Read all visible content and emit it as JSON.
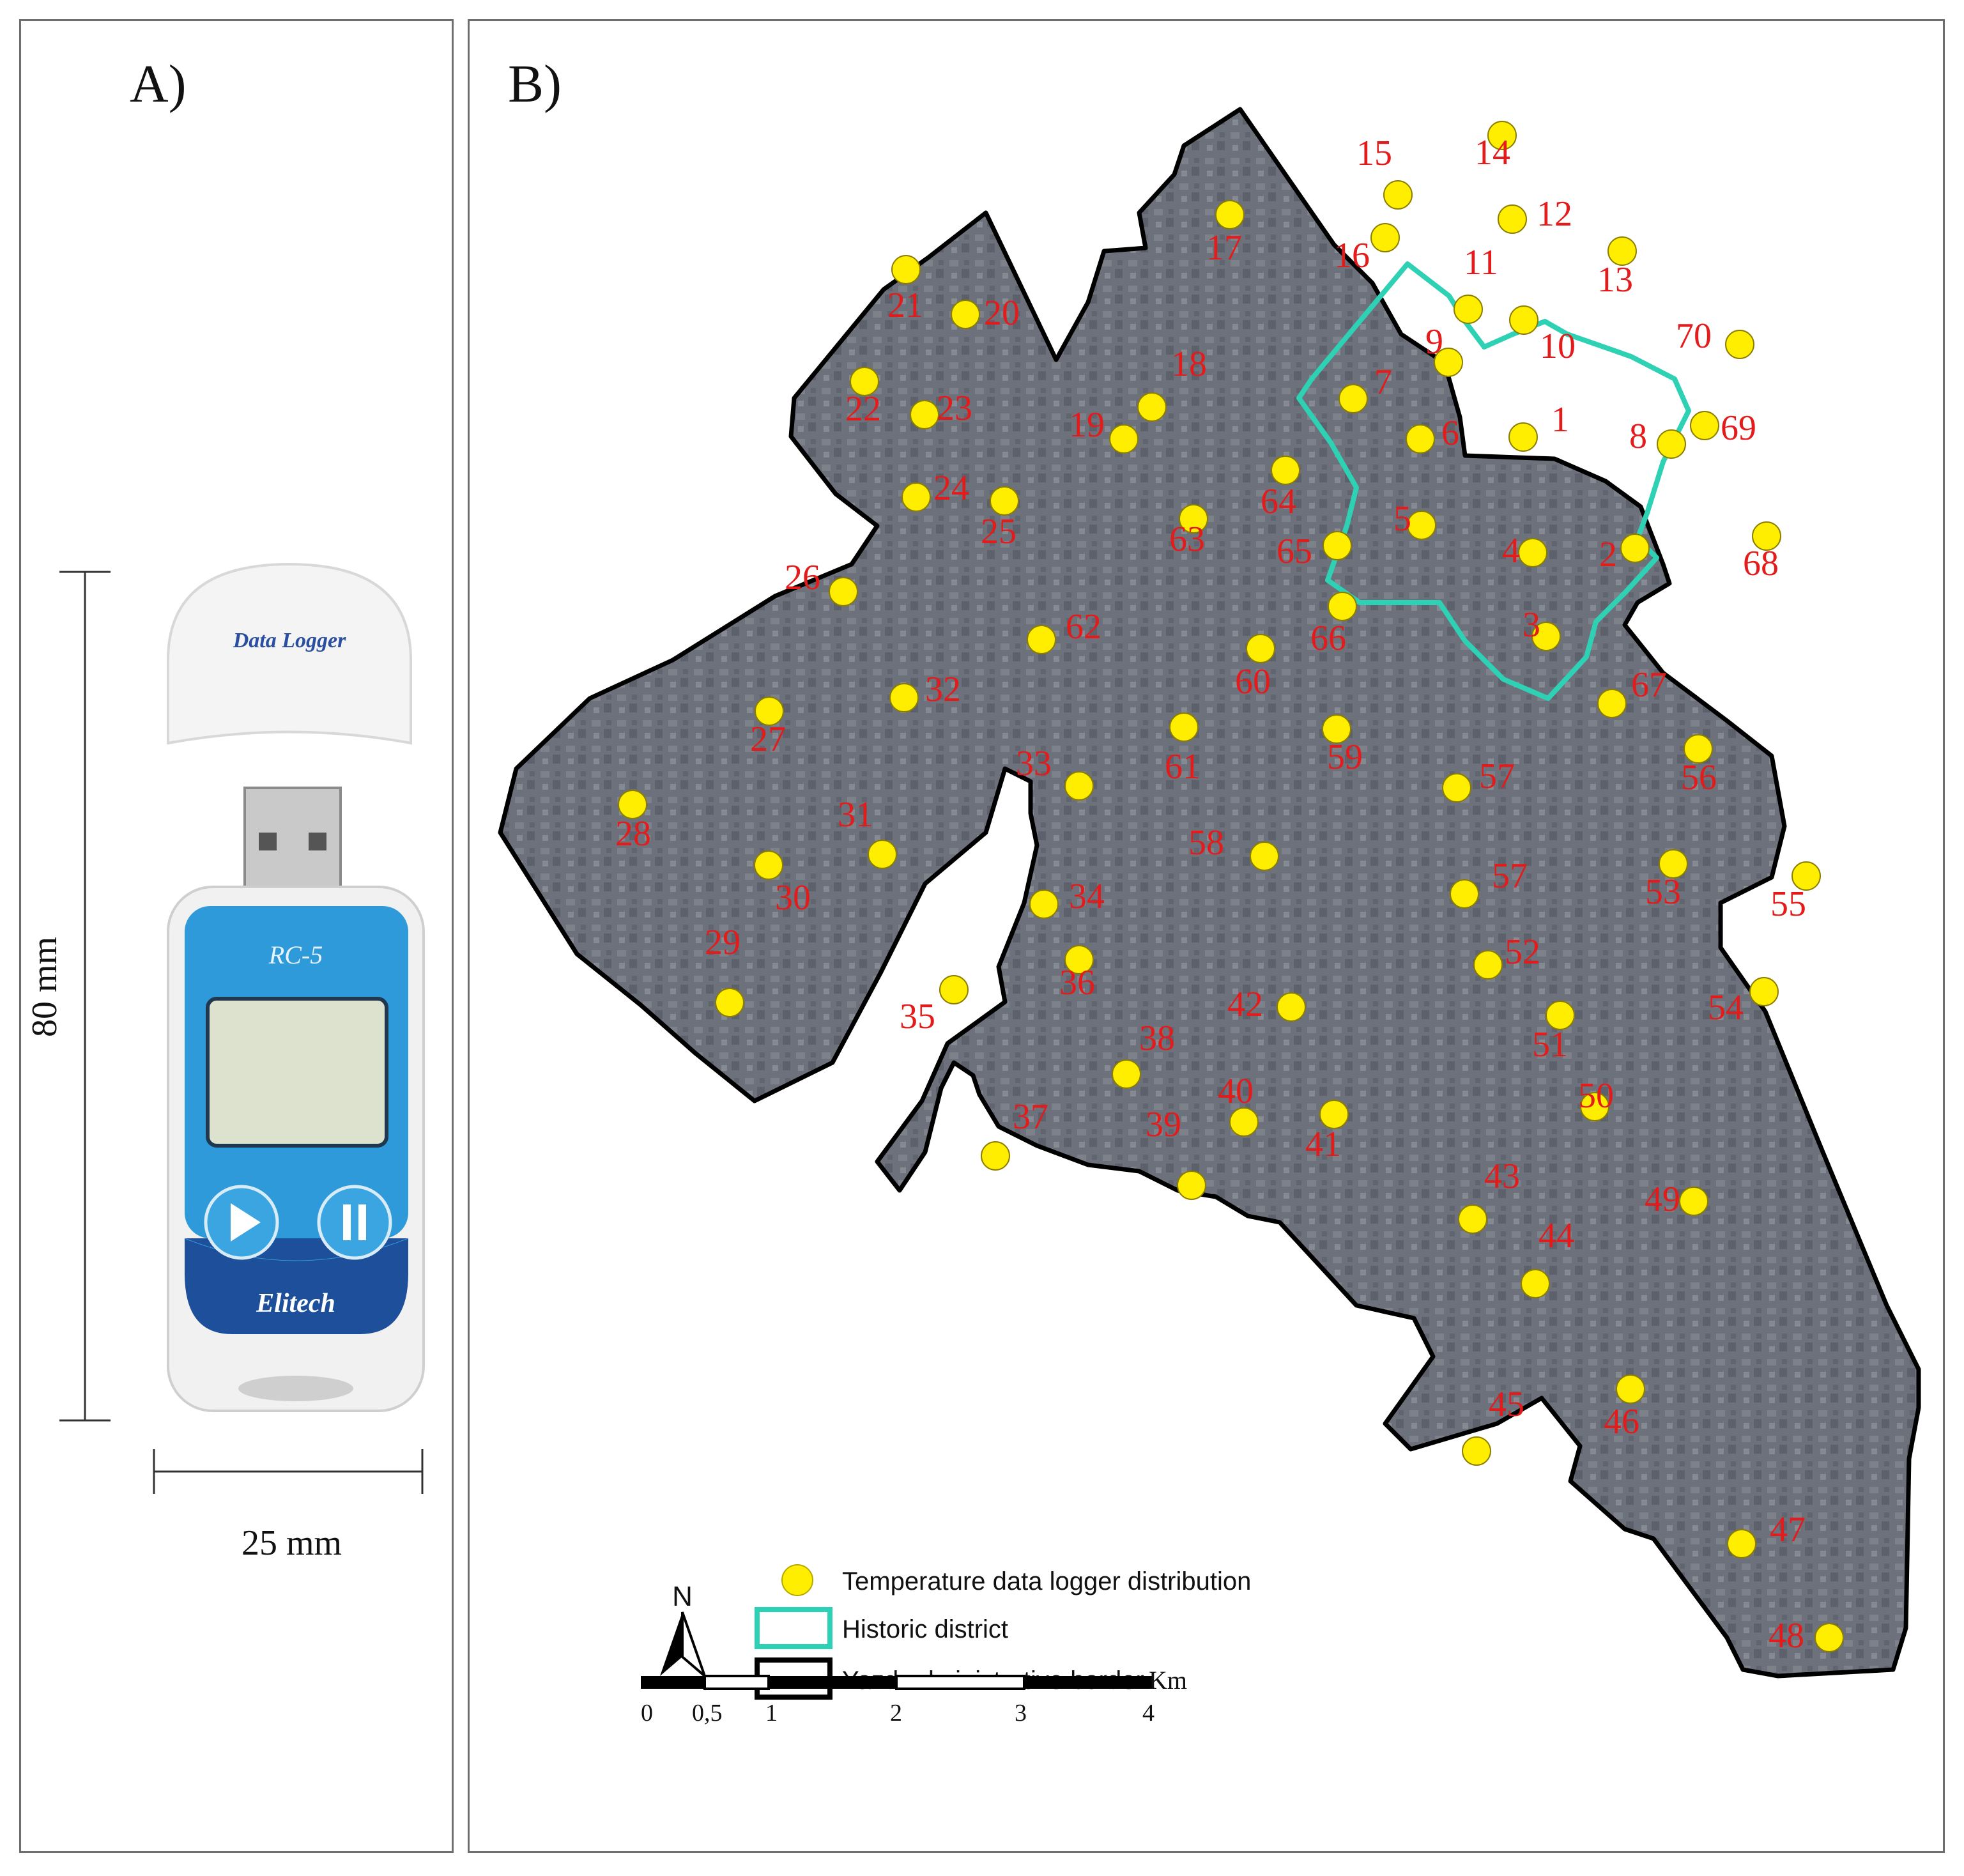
{
  "panel_a": {
    "label": "A)",
    "device": {
      "cap_text": "Data Logger",
      "model": "RC-5",
      "brand": "Elitech",
      "icons": [
        "play-icon",
        "pause-icon"
      ]
    },
    "dimensions": {
      "height_label": "80 mm",
      "width_label": "25 mm"
    }
  },
  "panel_b": {
    "label": "B)",
    "north_label": "N",
    "legend": [
      {
        "symbol": "yellow-dot",
        "label": "Temperature data logger distribution"
      },
      {
        "symbol": "teal-outline",
        "label": "Historic district"
      },
      {
        "symbol": "black-outline",
        "label": "Yazd administrative border"
      }
    ],
    "scale_bar": {
      "unit": "Km",
      "ticks": [
        "0",
        "0,5",
        "1",
        "2",
        "3",
        "4"
      ]
    },
    "loggers": [
      "1",
      "2",
      "3",
      "4",
      "5",
      "6",
      "7",
      "8",
      "9",
      "10",
      "11",
      "12",
      "13",
      "14",
      "15",
      "16",
      "17",
      "18",
      "19",
      "20",
      "21",
      "22",
      "23",
      "24",
      "25",
      "26",
      "27",
      "28",
      "29",
      "30",
      "31",
      "32",
      "33",
      "34",
      "35",
      "36",
      "37",
      "38",
      "39",
      "40",
      "41",
      "42",
      "43",
      "44",
      "45",
      "46",
      "47",
      "48",
      "49",
      "50",
      "51",
      "52",
      "53",
      "54",
      "55",
      "56",
      "57",
      "57",
      "58",
      "59",
      "60",
      "61",
      "62",
      "63",
      "64",
      "65",
      "66",
      "67",
      "68",
      "69",
      "70"
    ]
  },
  "colors": {
    "marker": "#ffee00",
    "label": "#e41b1b",
    "historic": "#2ed1b3",
    "border": "#000000",
    "urban": "#6b7079"
  }
}
